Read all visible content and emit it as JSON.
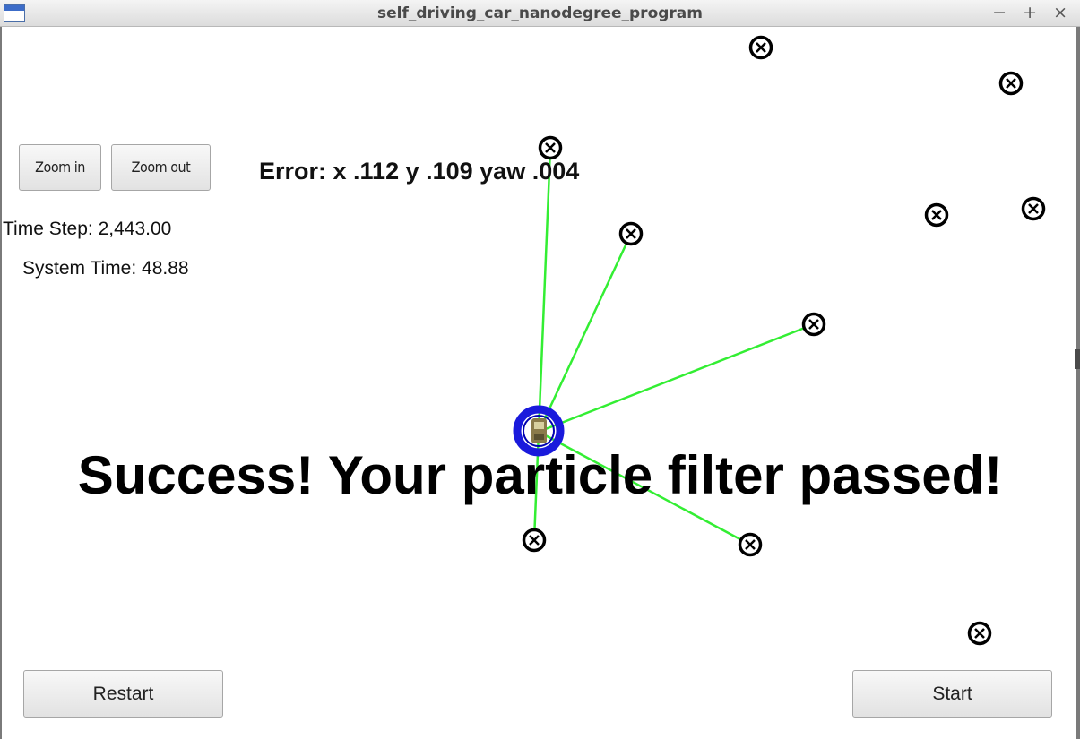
{
  "window": {
    "title": "self_driving_car_nanodegree_program",
    "controls": [
      "−",
      "+",
      "×"
    ]
  },
  "toolbar": {
    "zoom_in_label": "Zoom in",
    "zoom_out_label": "Zoom out"
  },
  "status": {
    "time_step": "Time Step: 2,443.00",
    "system_time": "System Time: 48.88",
    "error": "Error: x .112 y .109 yaw .004"
  },
  "message": "Success! Your particle filter passed!",
  "buttons": {
    "restart_label": "Restart",
    "start_label": "Start"
  },
  "colors": {
    "observation_line": "#33ee33",
    "vehicle_ring": "#1a1adc",
    "landmark": "#000000"
  },
  "icons": {
    "landmark": "landmark-marker-icon",
    "vehicle": "vehicle-icon"
  }
}
